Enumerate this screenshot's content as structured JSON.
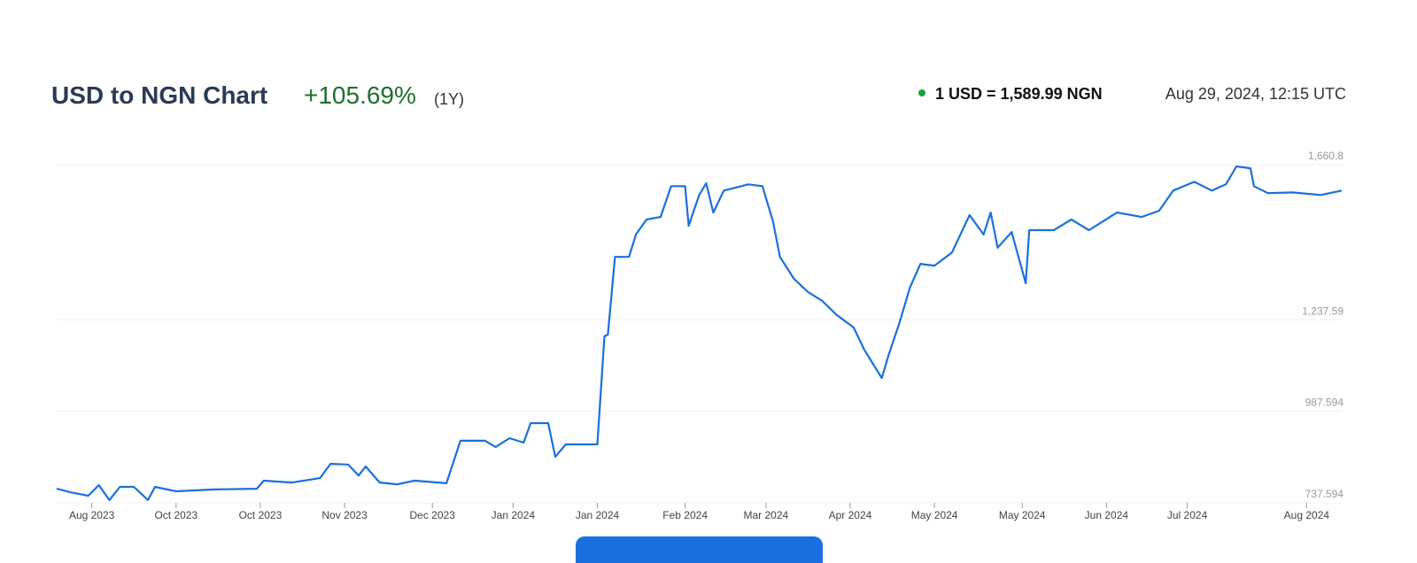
{
  "header": {
    "title": "USD to NGN Chart",
    "change": "+105.69%",
    "period": "(1Y)",
    "rate": "1 USD = 1,589.99 NGN",
    "timestamp": "Aug 29, 2024, 12:15 UTC"
  },
  "chart_data": {
    "type": "line",
    "color": "#1a6fdf",
    "grid": true,
    "xlim": [
      0,
      366
    ],
    "xticks": [
      {
        "value": 10,
        "label": "Aug 2023"
      },
      {
        "value": 34,
        "label": "Oct 2023"
      },
      {
        "value": 58,
        "label": "Oct 2023"
      },
      {
        "value": 82,
        "label": "Nov 2023"
      },
      {
        "value": 107,
        "label": "Dec 2023"
      },
      {
        "value": 130,
        "label": "Jan 2024"
      },
      {
        "value": 154,
        "label": "Jan 2024"
      },
      {
        "value": 179,
        "label": "Feb 2024"
      },
      {
        "value": 202,
        "label": "Mar 2024"
      },
      {
        "value": 226,
        "label": "Apr 2024"
      },
      {
        "value": 250,
        "label": "May 2024"
      },
      {
        "value": 275,
        "label": "May 2024"
      },
      {
        "value": 299,
        "label": "Jun 2024"
      },
      {
        "value": 322,
        "label": "Jul 2024"
      },
      {
        "value": 356,
        "label": "Aug 2024"
      }
    ],
    "ylim": [
      737.594,
      1660.8
    ],
    "yticks": [
      737.594,
      987.594,
      {
        "value": 1237.59,
        "label": "1,237.59"
      },
      {
        "value": 1660.8,
        "label": "1,660.8"
      }
    ],
    "x": [
      0,
      4,
      9,
      12,
      15,
      18,
      22,
      26,
      28,
      34,
      45,
      57,
      59,
      67,
      75,
      78,
      83,
      86,
      88,
      92,
      97,
      102,
      111,
      115,
      122,
      125,
      129,
      133,
      135,
      140,
      142,
      145,
      150,
      154,
      156,
      157,
      159,
      163,
      165,
      168,
      172,
      175,
      179,
      180,
      183,
      185,
      187,
      190,
      197,
      201,
      204,
      206,
      210,
      214,
      218,
      222,
      227,
      230,
      235,
      237,
      240,
      243,
      246,
      250,
      255,
      260,
      264,
      266,
      268,
      272,
      276,
      277,
      284,
      289,
      294,
      302,
      309,
      314,
      318,
      324,
      329,
      333,
      336,
      340,
      341,
      345,
      352,
      360,
      366
    ],
    "values": [
      776,
      766,
      757,
      786,
      745,
      781,
      781,
      745,
      781,
      769,
      774,
      776,
      798,
      793,
      805,
      844,
      842,
      812,
      837,
      793,
      788,
      798,
      791,
      907,
      907,
      890,
      914,
      902,
      955,
      955,
      863,
      897,
      897,
      897,
      1192,
      1197,
      1409,
      1409,
      1470,
      1511,
      1518,
      1602,
      1602,
      1494,
      1578,
      1610,
      1530,
      1590,
      1607,
      1602,
      1506,
      1409,
      1349,
      1313,
      1289,
      1252,
      1216,
      1156,
      1078,
      1143,
      1228,
      1325,
      1390,
      1385,
      1421,
      1523,
      1470,
      1530,
      1434,
      1477,
      1337,
      1482,
      1482,
      1511,
      1482,
      1530,
      1518,
      1535,
      1590,
      1614,
      1590,
      1607,
      1656,
      1651,
      1602,
      1583,
      1585,
      1578,
      1590
    ]
  }
}
